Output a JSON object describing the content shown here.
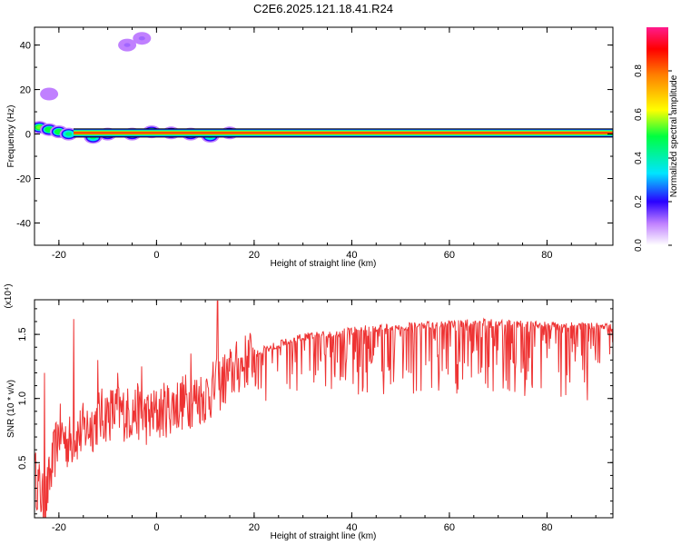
{
  "title": "C2E6.2025.121.18.41.R24",
  "colors": {
    "snr_line": "#ee3333",
    "frame": "#000000"
  },
  "chart_data": [
    {
      "type": "heatmap",
      "xlabel": "Height of straight line (km)",
      "ylabel": "Frequency (Hz)",
      "xlim": [
        -25,
        93.5
      ],
      "ylim": [
        -50,
        48
      ],
      "xticks": [
        -20,
        0,
        20,
        40,
        60,
        80
      ],
      "yticks": [
        -40,
        -20,
        0,
        20,
        40
      ],
      "colorbar": {
        "label": "Normalized spectral amplitude",
        "range": [
          0,
          1
        ],
        "ticks": [
          "0.0",
          "0.2",
          "0.4",
          "0.6",
          "0.8"
        ]
      },
      "band": {
        "frequency_hz": 0.5,
        "from_km": -17,
        "to_km": 93.5,
        "amplitude": 0.85
      },
      "blobs": [
        {
          "x": -24,
          "y": 3,
          "a": 0.55
        },
        {
          "x": -22,
          "y": 2,
          "a": 0.5
        },
        {
          "x": -20,
          "y": 1,
          "a": 0.5
        },
        {
          "x": -18,
          "y": 0,
          "a": 0.45
        },
        {
          "x": -13,
          "y": -1.5,
          "a": 0.45
        },
        {
          "x": -10,
          "y": 0,
          "a": 0.5
        },
        {
          "x": -5,
          "y": 0,
          "a": 0.55
        },
        {
          "x": -1,
          "y": 1,
          "a": 0.5
        },
        {
          "x": 3,
          "y": 0.5,
          "a": 0.55
        },
        {
          "x": 7,
          "y": 0,
          "a": 0.5
        },
        {
          "x": 11,
          "y": -1,
          "a": 0.45
        },
        {
          "x": 15,
          "y": 0.5,
          "a": 0.3
        },
        {
          "x": -6,
          "y": 40,
          "a": 0.12
        },
        {
          "x": -3,
          "y": 43,
          "a": 0.12
        },
        {
          "x": -22,
          "y": 18,
          "a": 0.1
        }
      ]
    },
    {
      "type": "line",
      "xlabel": "Height of straight line (km)",
      "ylabel": "SNR (10 * v/v)",
      "scale_label": "(x10⁴)",
      "xlim": [
        -25,
        93.5
      ],
      "ylim": [
        0.07,
        1.77
      ],
      "xticks": [
        -20,
        0,
        20,
        40,
        60,
        80
      ],
      "yticks": [
        "0.5",
        "1.0",
        "1.5"
      ],
      "series": [
        {
          "x": [
            -25,
            -24,
            -23,
            -22,
            -21,
            -20,
            -19,
            -18,
            -17,
            -16,
            -15,
            -14,
            -13,
            -12,
            -10,
            -8,
            -6,
            -4,
            -2,
            0,
            2,
            4,
            6,
            8,
            10,
            12,
            14,
            16,
            18,
            20,
            25,
            30,
            35,
            40,
            45,
            50,
            55,
            60,
            65,
            70,
            75,
            80,
            85,
            90,
            93.5
          ],
          "values": [
            0.4,
            0.3,
            0.15,
            0.35,
            0.55,
            0.75,
            0.7,
            0.65,
            0.7,
            0.72,
            0.75,
            0.78,
            0.8,
            0.85,
            0.88,
            0.9,
            0.88,
            0.9,
            0.85,
            0.88,
            0.92,
            0.95,
            0.98,
            1.0,
            1.02,
            1.08,
            1.15,
            1.22,
            1.28,
            1.35,
            1.42,
            1.48,
            1.5,
            1.53,
            1.55,
            1.56,
            1.57,
            1.58,
            1.59,
            1.59,
            1.58,
            1.57,
            1.57,
            1.56,
            1.55
          ]
        }
      ],
      "spikes": [
        {
          "x": -25,
          "y": 0.5
        },
        {
          "x": -23,
          "y": 1.2
        },
        {
          "x": -17,
          "y": 1.62
        },
        {
          "x": -12,
          "y": 1.3
        },
        {
          "x": -8,
          "y": 1.2
        },
        {
          "x": -3,
          "y": 1.25
        },
        {
          "x": 7,
          "y": 1.35
        },
        {
          "x": 12.5,
          "y": 1.76
        },
        {
          "x": 67,
          "y": 1.62
        }
      ]
    }
  ]
}
